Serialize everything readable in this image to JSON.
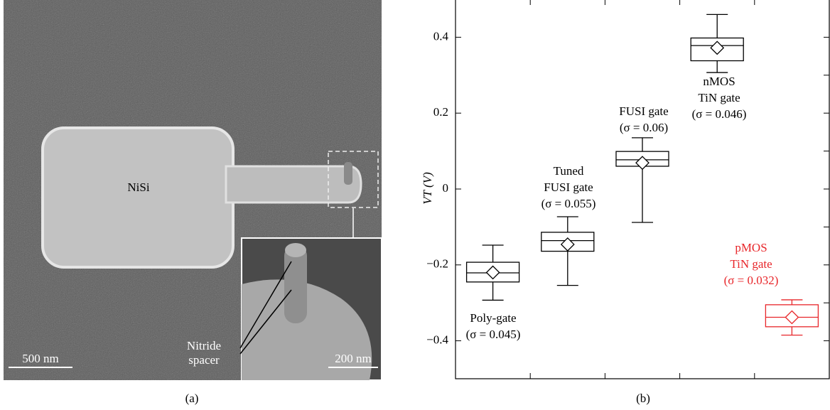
{
  "image": {
    "material_label": "NiSi",
    "spacer_label": [
      "Nitride",
      "spacer"
    ],
    "scale_bar_main": "500 nm",
    "scale_bar_inset": "200 nm"
  },
  "panel_labels": [
    "(a)",
    "(b)"
  ],
  "chart_data": {
    "type": "box",
    "y_label": "VT (V)",
    "ylim": [
      -0.5,
      0.5
    ],
    "yticks": [
      {
        "value": -0.4,
        "label": "−0.4"
      },
      {
        "value": -0.2,
        "label": "−0.2"
      },
      0,
      0.2,
      0.4
    ],
    "yminorticks": [
      -0.4,
      -0.3,
      -0.2,
      -0.1,
      0,
      0.1,
      0.2,
      0.3,
      0.4
    ],
    "boxes": [
      {
        "whislo": -0.293,
        "q1": -0.245,
        "med": -0.221,
        "q3": -0.193,
        "whishi": -0.148,
        "mean": -0.22,
        "color": "#000000",
        "annotation": [
          "Poly-gate",
          "(σ = 0.045)"
        ]
      },
      {
        "whislo": -0.254,
        "q1": -0.164,
        "med": -0.136,
        "q3": -0.114,
        "whishi": -0.073,
        "mean": -0.146,
        "color": "#000000",
        "annotation": [
          "Tuned",
          "FUSI gate",
          "(σ = 0.055)"
        ]
      },
      {
        "whislo": -0.088,
        "q1": 0.06,
        "med": 0.077,
        "q3": 0.099,
        "whishi": 0.135,
        "mean": 0.069,
        "color": "#000000",
        "annotation": [
          "FUSI gate",
          "(σ = 0.06)"
        ]
      },
      {
        "whislo": 0.307,
        "q1": 0.338,
        "med": 0.378,
        "q3": 0.398,
        "whishi": 0.46,
        "mean": 0.372,
        "color": "#000000",
        "annotation": [
          "nMOS",
          "TiN gate",
          "(σ = 0.046)"
        ]
      },
      {
        "whislo": -0.385,
        "q1": -0.363,
        "med": -0.338,
        "q3": -0.305,
        "whishi": -0.292,
        "mean": -0.338,
        "color": "#e8262a",
        "annotation": [
          "pMOS",
          "TiN gate",
          "(σ = 0.032)"
        ]
      }
    ]
  }
}
